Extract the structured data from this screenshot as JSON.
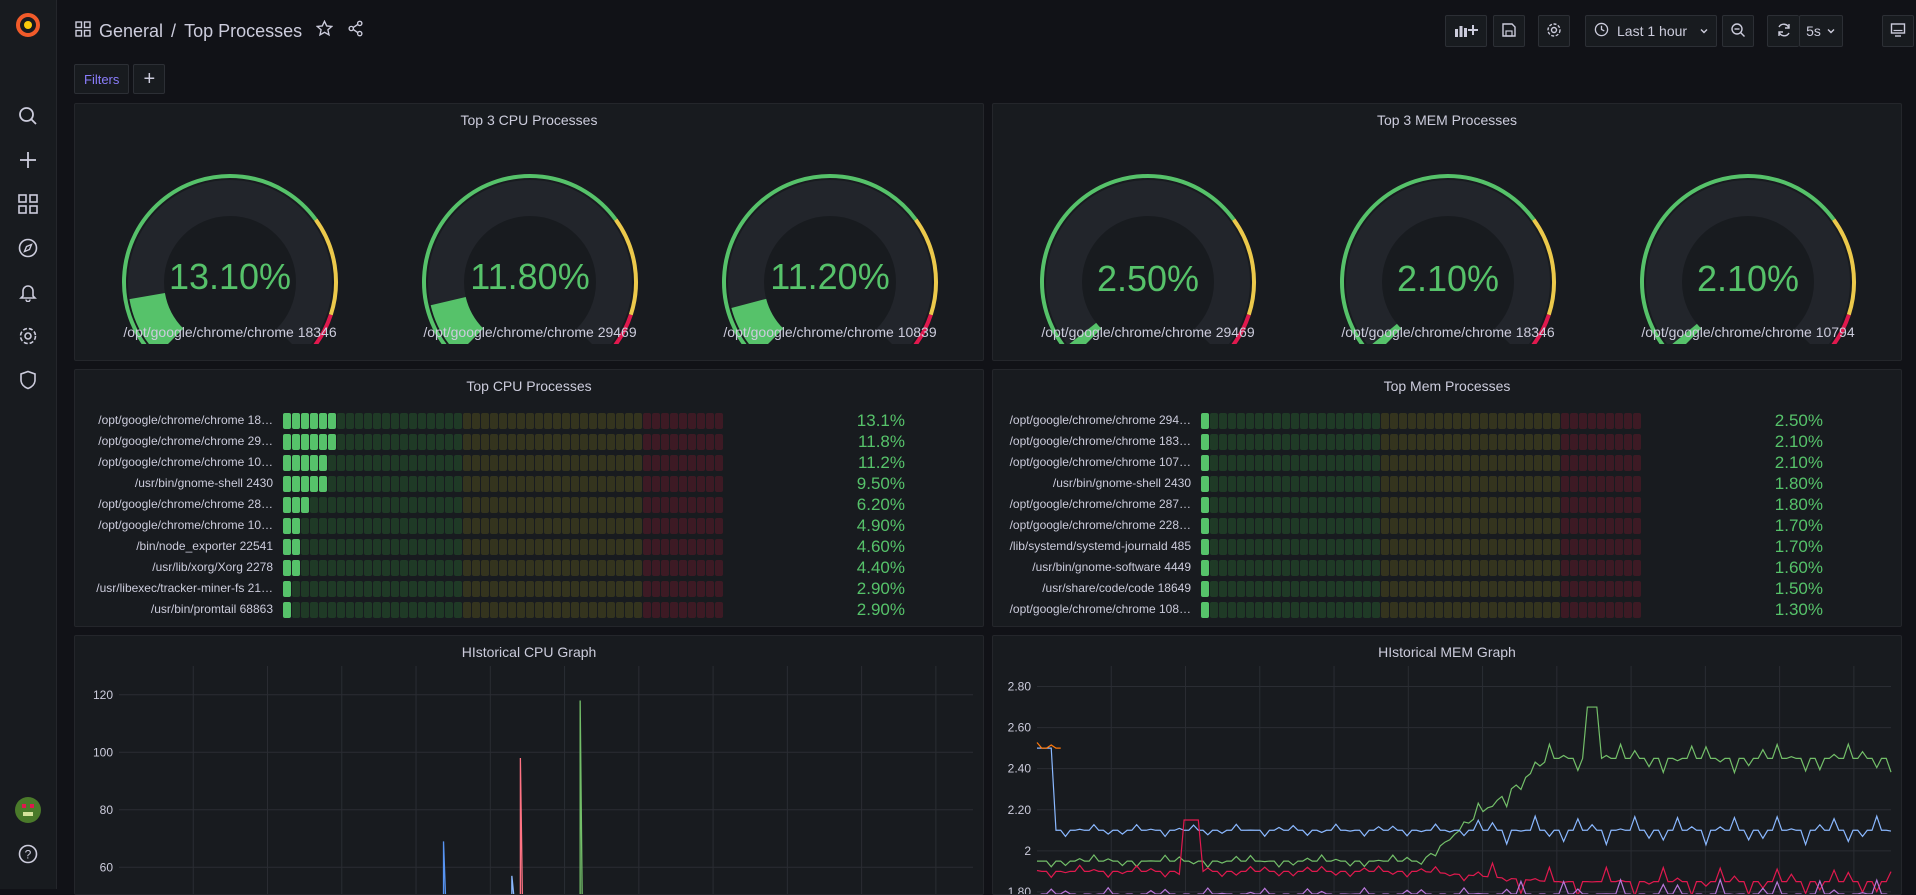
{
  "breadcrumb": {
    "folder": "General",
    "separator": "/",
    "title": "Top Processes"
  },
  "toolbar": {
    "time_range": "Last 1 hour",
    "refresh_interval": "5s"
  },
  "filters": {
    "label": "Filters",
    "add_label": "+"
  },
  "colors": {
    "green": "#56c26a",
    "yellow": "#ecc94b",
    "red": "#e0194e",
    "background": "#181b1f"
  },
  "panels": {
    "cpu_gauges": {
      "title": "Top 3 CPU Processes",
      "items": [
        {
          "value_text": "13.10%",
          "value": 13.1,
          "label": "/opt/google/chrome/chrome 18346"
        },
        {
          "value_text": "11.80%",
          "value": 11.8,
          "label": "/opt/google/chrome/chrome 29469"
        },
        {
          "value_text": "11.20%",
          "value": 11.2,
          "label": "/opt/google/chrome/chrome 10839"
        }
      ]
    },
    "mem_gauges": {
      "title": "Top 3 MEM Processes",
      "items": [
        {
          "value_text": "2.50%",
          "value": 2.5,
          "label": "/opt/google/chrome/chrome 29469"
        },
        {
          "value_text": "2.10%",
          "value": 2.1,
          "label": "/opt/google/chrome/chrome 18346"
        },
        {
          "value_text": "2.10%",
          "value": 2.1,
          "label": "/opt/google/chrome/chrome 10794"
        }
      ]
    },
    "cpu_bars": {
      "title": "Top CPU Processes",
      "rows": [
        {
          "label": "/opt/google/chrome/chrome 18…",
          "value_text": "13.1%",
          "value": 13.1
        },
        {
          "label": "/opt/google/chrome/chrome 29…",
          "value_text": "11.8%",
          "value": 11.8
        },
        {
          "label": "/opt/google/chrome/chrome 10…",
          "value_text": "11.2%",
          "value": 11.2
        },
        {
          "label": "/usr/bin/gnome-shell 2430",
          "value_text": "9.50%",
          "value": 9.5
        },
        {
          "label": "/opt/google/chrome/chrome 28…",
          "value_text": "6.20%",
          "value": 6.2
        },
        {
          "label": "/opt/google/chrome/chrome 10…",
          "value_text": "4.90%",
          "value": 4.9
        },
        {
          "label": "/bin/node_exporter 22541",
          "value_text": "4.60%",
          "value": 4.6
        },
        {
          "label": "/usr/lib/xorg/Xorg 2278",
          "value_text": "4.40%",
          "value": 4.4
        },
        {
          "label": "/usr/libexec/tracker-miner-fs 21…",
          "value_text": "2.90%",
          "value": 2.9
        },
        {
          "label": "/usr/bin/promtail 68863",
          "value_text": "2.90%",
          "value": 2.9
        }
      ]
    },
    "mem_bars": {
      "title": "Top Mem Processes",
      "rows": [
        {
          "label": "/opt/google/chrome/chrome 294…",
          "value_text": "2.50%",
          "value": 2.5
        },
        {
          "label": "/opt/google/chrome/chrome 183…",
          "value_text": "2.10%",
          "value": 2.1
        },
        {
          "label": "/opt/google/chrome/chrome 107…",
          "value_text": "2.10%",
          "value": 2.1
        },
        {
          "label": "/usr/bin/gnome-shell 2430",
          "value_text": "1.80%",
          "value": 1.8
        },
        {
          "label": "/opt/google/chrome/chrome 287…",
          "value_text": "1.80%",
          "value": 1.8
        },
        {
          "label": "/opt/google/chrome/chrome 228…",
          "value_text": "1.70%",
          "value": 1.7
        },
        {
          "label": "/lib/systemd/systemd-journald 485",
          "value_text": "1.70%",
          "value": 1.7
        },
        {
          "label": "/usr/bin/gnome-software 4449",
          "value_text": "1.60%",
          "value": 1.6
        },
        {
          "label": "/usr/share/code/code 18649",
          "value_text": "1.50%",
          "value": 1.5
        },
        {
          "label": "/opt/google/chrome/chrome 108…",
          "value_text": "1.30%",
          "value": 1.3
        }
      ]
    },
    "cpu_graph": {
      "title": "HIstorical CPU Graph"
    },
    "mem_graph": {
      "title": "HIstorical MEM Graph"
    }
  },
  "chart_data": [
    {
      "type": "line",
      "title": "HIstorical CPU Graph",
      "ylabel": "",
      "y_ticks": [
        "120",
        "100",
        "80",
        "60"
      ],
      "y_tick_values": [
        120,
        100,
        80,
        60
      ],
      "ylim": [
        50,
        130
      ],
      "series": [
        {
          "color": "#73bf69",
          "spike_x_frac": 0.54,
          "peak": 118
        },
        {
          "color": "#ff7383",
          "spike_x_frac": 0.47,
          "peak": 98
        },
        {
          "color": "#5794f2",
          "spike_x_frac": 0.38,
          "peak": 69
        },
        {
          "color": "#8ab8ff",
          "spike_x_frac": 0.46,
          "peak": 57
        }
      ]
    },
    {
      "type": "line",
      "title": "HIstorical MEM Graph",
      "ylabel": "",
      "y_ticks": [
        "2.80",
        "2.60",
        "2.40",
        "2.20",
        "2",
        "1.80"
      ],
      "y_tick_values": [
        2.8,
        2.6,
        2.4,
        2.2,
        2.0,
        1.8
      ],
      "ylim": [
        1.78,
        2.9
      ],
      "series": [
        {
          "color": "#73bf69",
          "level_start": 1.95,
          "level_end": 2.45,
          "peak": 2.7
        },
        {
          "color": "#8ab8ff",
          "level_start": 2.1,
          "level_end": 2.1,
          "peak": 2.5
        },
        {
          "color": "#ff780a",
          "level_start": 2.5,
          "level_end": 2.5,
          "peak": 2.5
        },
        {
          "color": "#e0194e",
          "level_start": 1.9,
          "level_end": 1.85,
          "peak": 2.15
        },
        {
          "color": "#b877d9",
          "level_start": 1.79,
          "level_end": 1.79,
          "peak": 1.79
        }
      ]
    }
  ]
}
